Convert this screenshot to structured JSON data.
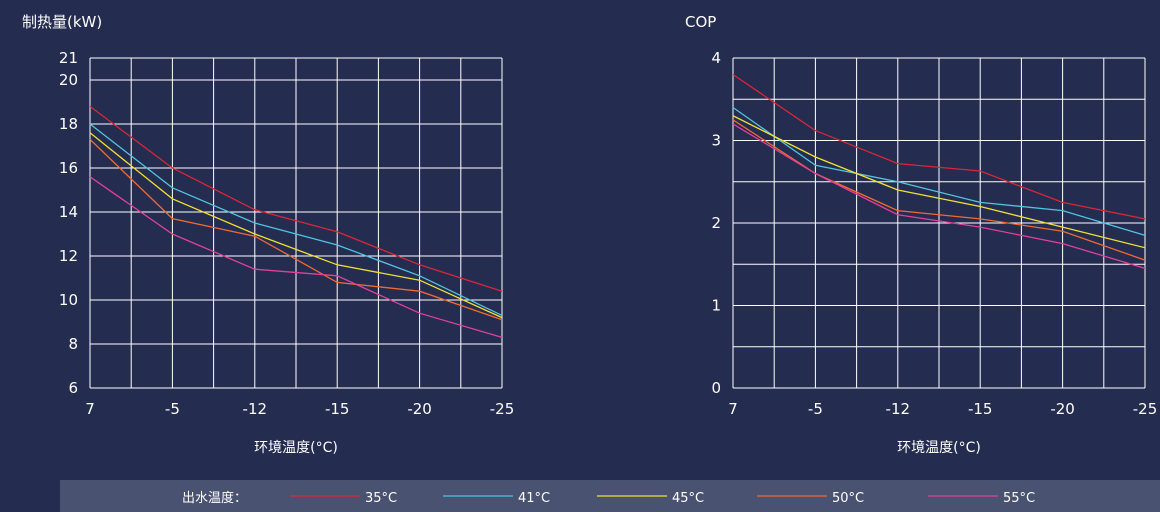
{
  "chart_data": [
    {
      "type": "line",
      "title": "制热量(kW)",
      "x_label": "环境温度(°C)",
      "categories": [
        "7",
        "-5",
        "-12",
        "-15",
        "-20",
        "-25"
      ],
      "ylim": [
        6,
        21
      ],
      "yticks": [
        6,
        8,
        10,
        12,
        14,
        16,
        18,
        20,
        21
      ],
      "grid": true,
      "series": [
        {
          "values": [
            18.8,
            16.0,
            14.1,
            13.1,
            11.6,
            10.4
          ]
        },
        {
          "values": [
            18.0,
            15.1,
            13.5,
            12.5,
            11.1,
            9.3
          ]
        },
        {
          "values": [
            17.6,
            14.6,
            13.0,
            11.6,
            10.9,
            9.2
          ]
        },
        {
          "values": [
            17.3,
            13.7,
            12.9,
            10.8,
            10.4,
            9.1
          ]
        },
        {
          "values": [
            15.6,
            13.0,
            11.4,
            11.1,
            9.4,
            8.3
          ]
        }
      ]
    },
    {
      "type": "line",
      "title": "COP",
      "x_label": "环境温度(°C)",
      "categories": [
        "7",
        "-5",
        "-12",
        "-15",
        "-20",
        "-25"
      ],
      "ylim": [
        0,
        4
      ],
      "yticks": [
        0,
        1,
        2,
        3,
        4
      ],
      "grid": true,
      "series": [
        {
          "values": [
            3.8,
            3.12,
            2.72,
            2.63,
            2.25,
            2.05
          ]
        },
        {
          "values": [
            3.4,
            2.7,
            2.5,
            2.25,
            2.15,
            1.85
          ]
        },
        {
          "values": [
            3.3,
            2.8,
            2.4,
            2.2,
            1.95,
            1.7
          ]
        },
        {
          "values": [
            3.25,
            2.6,
            2.15,
            2.05,
            1.9,
            1.55
          ]
        },
        {
          "values": [
            3.2,
            2.6,
            2.1,
            1.95,
            1.75,
            1.45
          ]
        }
      ]
    }
  ],
  "legend": {
    "title": "出水温度：",
    "items": [
      {
        "name": "35°C",
        "color": "#d9263a"
      },
      {
        "name": "41°C",
        "color": "#4fc3e0"
      },
      {
        "name": "45°C",
        "color": "#f0e030"
      },
      {
        "name": "50°C",
        "color": "#f06a30"
      },
      {
        "name": "55°C",
        "color": "#e0409a"
      }
    ]
  }
}
